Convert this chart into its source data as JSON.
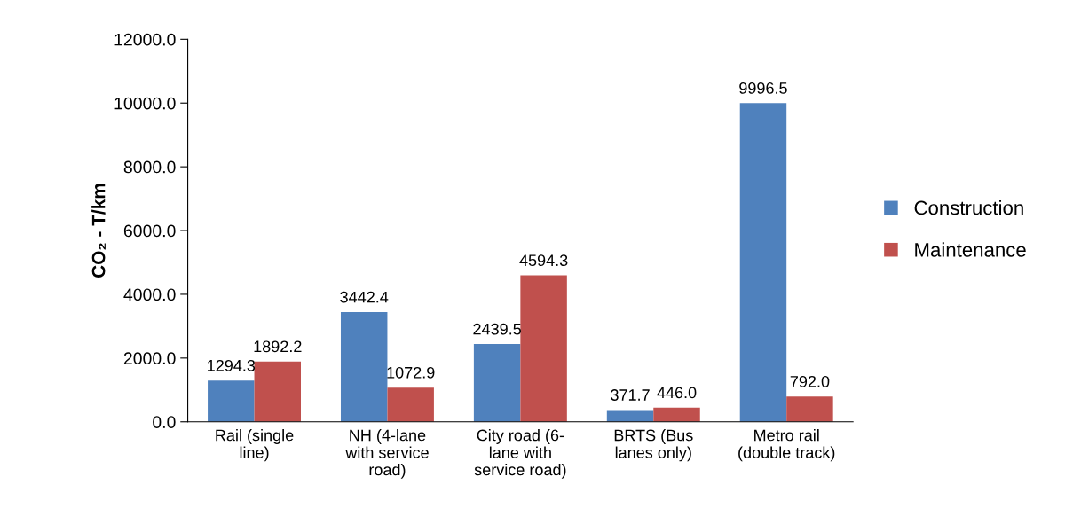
{
  "chart_data": {
    "type": "bar",
    "ylabel": "CO₂ - T/km",
    "categories": [
      "Rail (single\nline)",
      "NH (4-lane\nwith service\nroad)",
      "City road (6-\nlane with\nservice road)",
      "BRTS (Bus\nlanes only)",
      "Metro rail\n(double track)"
    ],
    "series": [
      {
        "name": "Construction",
        "color": "#4f81bd",
        "values": [
          1294.3,
          3442.4,
          2439.5,
          371.7,
          9996.5
        ],
        "value_labels": [
          "1294.3",
          "3442.4",
          "2439.5",
          "371.7",
          "9996.5"
        ]
      },
      {
        "name": "Maintenance",
        "color": "#c0504d",
        "values": [
          1892.2,
          1072.9,
          4594.3,
          446,
          792
        ],
        "value_labels": [
          "1892.2",
          "1072.9",
          "4594.3",
          "446.0",
          "792.0"
        ]
      }
    ],
    "ylim": [
      0,
      12000
    ],
    "yticks": [
      {
        "value": 0,
        "label": "0.0"
      },
      {
        "value": 2000,
        "label": "2000.0"
      },
      {
        "value": 4000,
        "label": "4000.0"
      },
      {
        "value": 6000,
        "label": "6000.0"
      },
      {
        "value": 8000,
        "label": "8000.0"
      },
      {
        "value": 10000,
        "label": "10000.0"
      },
      {
        "value": 12000,
        "label": "12000.0"
      }
    ],
    "grid": false,
    "legend": "right"
  }
}
